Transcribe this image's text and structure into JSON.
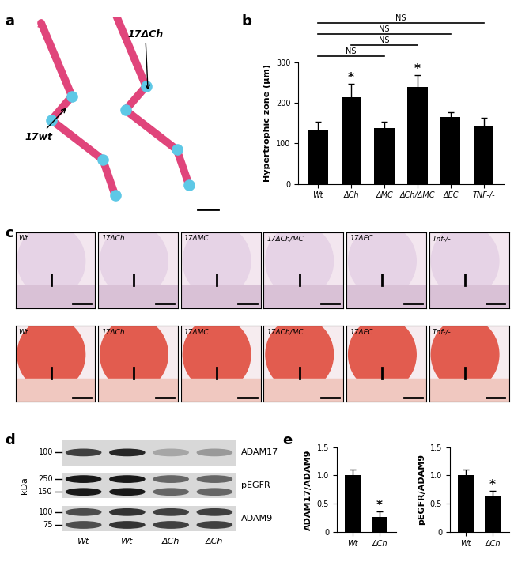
{
  "panels": [
    "a",
    "b",
    "c",
    "d",
    "e"
  ],
  "skeletal_preparation": {
    "labels": [
      "17wt",
      "17ΔCh"
    ]
  },
  "histology": {
    "columns": [
      "Wt",
      "17ΔCh",
      "17ΔMC",
      "17ΔCh/MC",
      "17ΔEC",
      "Tnf-/-"
    ]
  },
  "western_blot": {
    "unit": "kDa",
    "lanes": [
      "Wt",
      "Wt",
      "ΔCh",
      "ΔCh"
    ],
    "blots": [
      {
        "name": "ADAM17",
        "markers": [
          100
        ]
      },
      {
        "name": "pEGFR",
        "markers": [
          250,
          150
        ]
      },
      {
        "name": "ADAM9",
        "markers": [
          100,
          75
        ]
      }
    ]
  },
  "chart_data": [
    {
      "type": "bar",
      "y_label": "Hypertrophic zone (μm)",
      "categories": [
        "Wt",
        "ΔCh",
        "ΔMC",
        "ΔCh/ΔMC",
        "ΔEC",
        "TNF-/-"
      ],
      "values": [
        133,
        213,
        138,
        240,
        165,
        143
      ],
      "errors": [
        20,
        33,
        16,
        28,
        12,
        20
      ],
      "significance": [
        null,
        "*",
        null,
        "*",
        null,
        null
      ],
      "comparisons": [
        {
          "from": "Wt",
          "to": "ΔMC",
          "label": "NS"
        },
        {
          "from": "ΔCh",
          "to": "ΔCh/ΔMC",
          "label": "NS"
        },
        {
          "from": "Wt",
          "to": "ΔEC",
          "label": "NS"
        },
        {
          "from": "Wt",
          "to": "TNF-/-",
          "label": "NS"
        }
      ],
      "color": "#000000",
      "ylim": [
        0,
        300
      ],
      "yticks": [
        0,
        100,
        200,
        300
      ]
    },
    {
      "type": "bar",
      "y_label": "ADAM17/ADAM9",
      "categories": [
        "Wt",
        "ΔCh"
      ],
      "values": [
        1.0,
        0.27
      ],
      "errors": [
        0.1,
        0.1
      ],
      "significance": [
        null,
        "*"
      ],
      "color": "#000000",
      "ylim": [
        0,
        1.5
      ],
      "yticks": [
        0,
        0.5,
        {
          "value": 1.0,
          "label": "1.0"
        },
        1.5
      ]
    },
    {
      "type": "bar",
      "y_label": "pEGFR/ADAM9",
      "categories": [
        "Wt",
        "ΔCh"
      ],
      "values": [
        1.0,
        0.64
      ],
      "errors": [
        0.1,
        0.08
      ],
      "significance": [
        null,
        "*"
      ],
      "color": "#000000",
      "ylim": [
        0,
        1.5
      ],
      "yticks": [
        0,
        0.5,
        {
          "value": 1.0,
          "label": "1.0"
        },
        1.5
      ]
    }
  ]
}
